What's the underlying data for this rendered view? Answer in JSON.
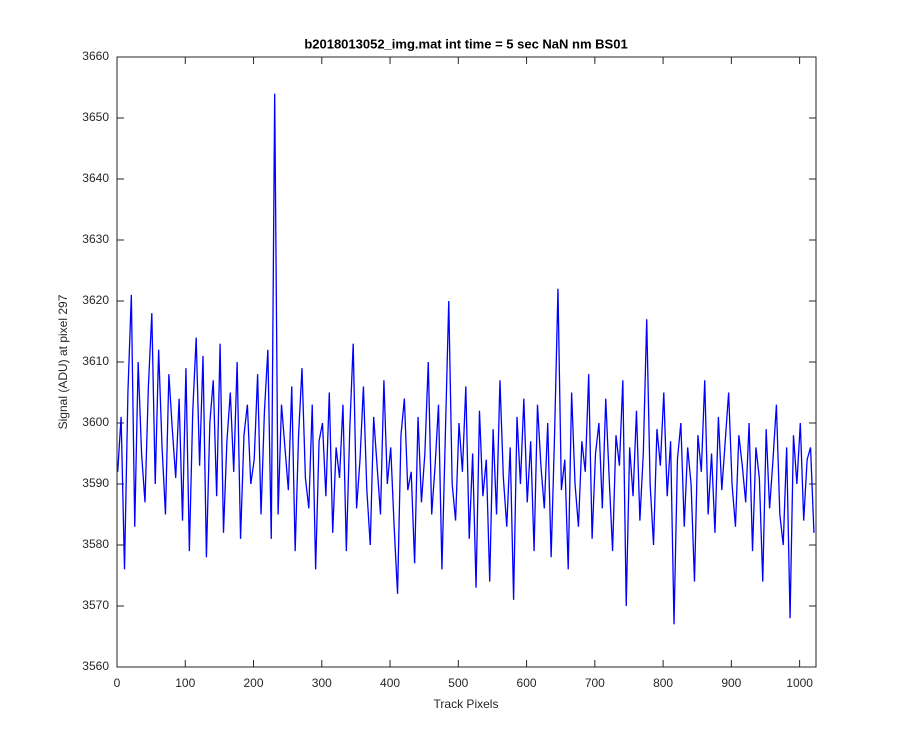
{
  "chart_data": {
    "type": "line",
    "title": "b2018013052_img.mat int time = 5 sec  NaN nm BS01",
    "xlabel": "Track Pixels",
    "ylabel": "Signal (ADU) at pixel 297",
    "x": [
      1,
      6,
      11,
      16,
      21,
      26,
      31,
      36,
      41,
      46,
      51,
      56,
      61,
      66,
      71,
      76,
      81,
      86,
      91,
      96,
      101,
      106,
      111,
      116,
      121,
      126,
      131,
      136,
      141,
      146,
      151,
      156,
      161,
      166,
      171,
      176,
      181,
      186,
      191,
      196,
      201,
      206,
      211,
      216,
      221,
      226,
      231,
      236,
      241,
      246,
      251,
      256,
      261,
      266,
      271,
      276,
      281,
      286,
      291,
      296,
      301,
      306,
      311,
      316,
      321,
      326,
      331,
      336,
      341,
      346,
      351,
      356,
      361,
      366,
      371,
      376,
      381,
      386,
      391,
      396,
      401,
      406,
      411,
      416,
      421,
      426,
      431,
      436,
      441,
      446,
      451,
      456,
      461,
      466,
      471,
      476,
      481,
      486,
      491,
      496,
      501,
      506,
      511,
      516,
      521,
      526,
      531,
      536,
      541,
      546,
      551,
      556,
      561,
      566,
      571,
      576,
      581,
      586,
      591,
      596,
      601,
      606,
      611,
      616,
      621,
      626,
      631,
      636,
      641,
      646,
      651,
      656,
      661,
      666,
      671,
      676,
      681,
      686,
      691,
      696,
      701,
      706,
      711,
      716,
      721,
      726,
      731,
      736,
      741,
      746,
      751,
      756,
      761,
      766,
      771,
      776,
      781,
      786,
      791,
      796,
      801,
      806,
      811,
      816,
      821,
      826,
      831,
      836,
      841,
      846,
      851,
      856,
      861,
      866,
      871,
      876,
      881,
      886,
      891,
      896,
      901,
      906,
      911,
      916,
      921,
      926,
      931,
      936,
      941,
      946,
      951,
      956,
      961,
      966,
      971,
      976,
      981,
      986,
      991,
      996,
      1001,
      1006,
      1011,
      1016,
      1021
    ],
    "series": [
      {
        "name": "signal",
        "color": "#0000ff",
        "values": [
          3592,
          3601,
          3576,
          3605,
          3621,
          3583,
          3610,
          3595,
          3587,
          3606,
          3618,
          3590,
          3612,
          3596,
          3585,
          3608,
          3599,
          3591,
          3604,
          3584,
          3609,
          3579,
          3602,
          3614,
          3593,
          3611,
          3578,
          3600,
          3607,
          3588,
          3613,
          3582,
          3597,
          3605,
          3592,
          3610,
          3581,
          3598,
          3603,
          3590,
          3594,
          3608,
          3585,
          3602,
          3612,
          3581,
          3654,
          3585,
          3603,
          3596,
          3589,
          3606,
          3579,
          3598,
          3609,
          3591,
          3586,
          3603,
          3576,
          3597,
          3600,
          3588,
          3605,
          3582,
          3596,
          3591,
          3603,
          3579,
          3599,
          3613,
          3586,
          3594,
          3606,
          3589,
          3580,
          3601,
          3593,
          3585,
          3607,
          3590,
          3596,
          3583,
          3572,
          3598,
          3604,
          3589,
          3592,
          3577,
          3601,
          3587,
          3595,
          3610,
          3585,
          3593,
          3603,
          3576,
          3598,
          3620,
          3590,
          3584,
          3600,
          3592,
          3606,
          3581,
          3595,
          3573,
          3602,
          3588,
          3594,
          3574,
          3599,
          3585,
          3607,
          3591,
          3583,
          3596,
          3571,
          3601,
          3590,
          3604,
          3587,
          3597,
          3579,
          3603,
          3593,
          3586,
          3600,
          3578,
          3598,
          3622,
          3589,
          3594,
          3576,
          3605,
          3590,
          3583,
          3597,
          3592,
          3608,
          3581,
          3595,
          3600,
          3586,
          3604,
          3591,
          3579,
          3598,
          3593,
          3607,
          3570,
          3596,
          3588,
          3602,
          3584,
          3595,
          3617,
          3590,
          3580,
          3599,
          3593,
          3605,
          3588,
          3597,
          3567,
          3594,
          3600,
          3583,
          3596,
          3590,
          3574,
          3598,
          3592,
          3607,
          3585,
          3595,
          3582,
          3601,
          3589,
          3597,
          3605,
          3590,
          3583,
          3598,
          3593,
          3587,
          3600,
          3579,
          3596,
          3591,
          3574,
          3599,
          3586,
          3594,
          3603,
          3585,
          3580,
          3596,
          3568,
          3598,
          3590,
          3600,
          3584,
          3594,
          3596,
          3582
        ]
      }
    ],
    "xlim": [
      0,
      1024
    ],
    "ylim": [
      3560,
      3660
    ],
    "xticks": [
      0,
      100,
      200,
      300,
      400,
      500,
      600,
      700,
      800,
      900,
      1000
    ],
    "yticks": [
      3560,
      3570,
      3580,
      3590,
      3600,
      3610,
      3620,
      3630,
      3640,
      3650,
      3660
    ],
    "grid": false
  }
}
